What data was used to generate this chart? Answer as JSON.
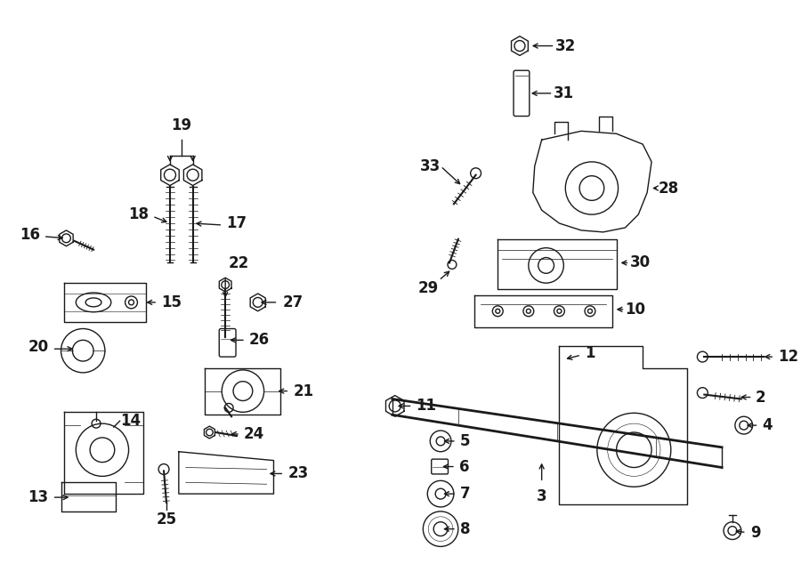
{
  "bg_color": "#ffffff",
  "line_color": "#1a1a1a",
  "lw": 1.0,
  "fs": 12,
  "fig_width": 9.0,
  "fig_height": 6.61,
  "dpi": 100
}
